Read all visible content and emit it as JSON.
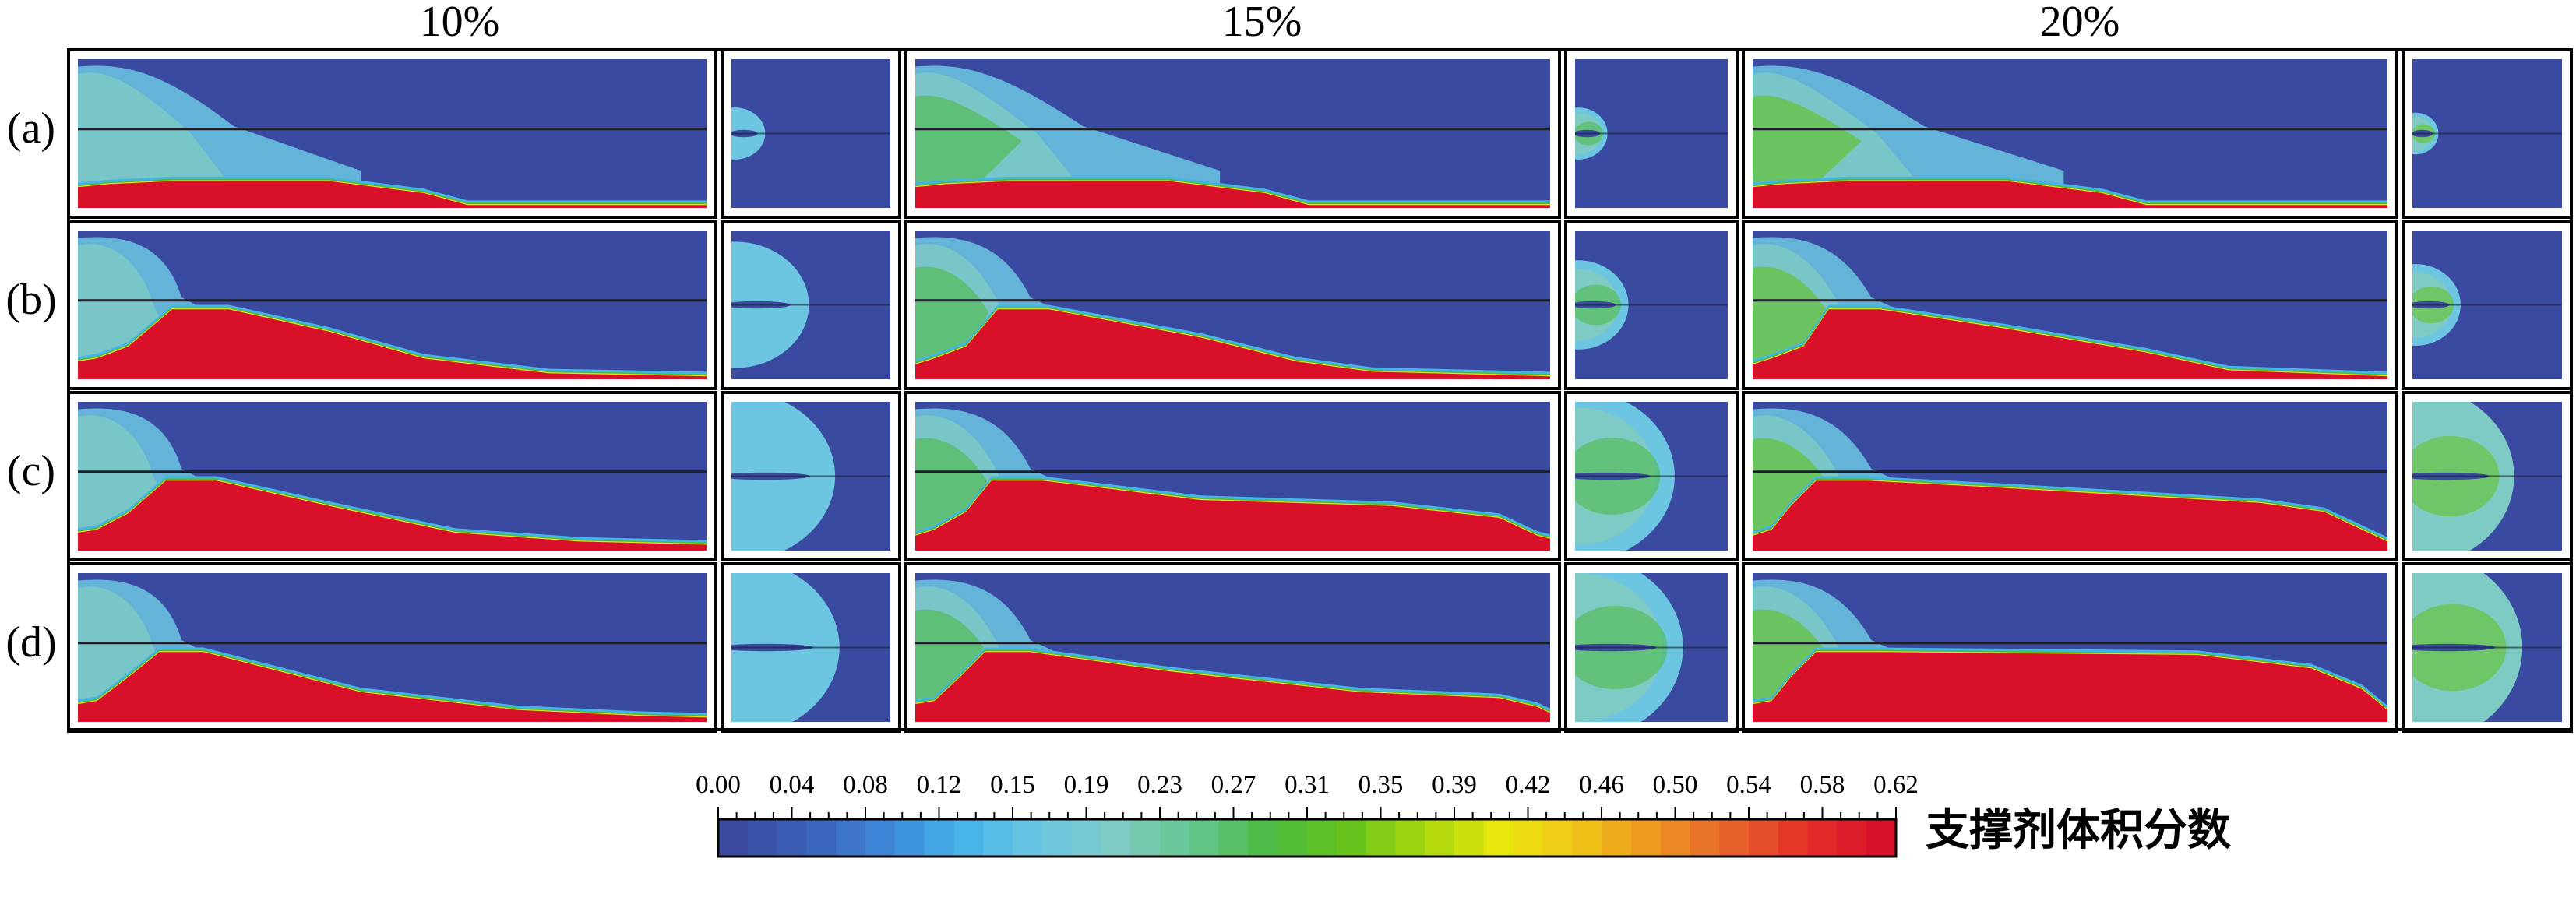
{
  "columns": [
    {
      "label": "10%"
    },
    {
      "label": "15%"
    },
    {
      "label": "20%"
    }
  ],
  "rows": [
    {
      "label": "(a)"
    },
    {
      "label": "(b)"
    },
    {
      "label": "(c)"
    },
    {
      "label": "(d)"
    }
  ],
  "colorbar": {
    "title": "支撑剂体积分数",
    "ticks": [
      "0.00",
      "0.04",
      "0.08",
      "0.12",
      "0.15",
      "0.19",
      "0.23",
      "0.27",
      "0.31",
      "0.35",
      "0.39",
      "0.42",
      "0.46",
      "0.50",
      "0.54",
      "0.58",
      "0.62"
    ],
    "min": 0.0,
    "max": 0.62,
    "colors": [
      "#3a4aa0",
      "#3a61b8",
      "#3d86d8",
      "#45b4ea",
      "#6cc6e2",
      "#7dcbc4",
      "#66c690",
      "#4cbb42",
      "#63c21e",
      "#a6d60e",
      "#e6e60a",
      "#f0c818",
      "#ee9620",
      "#e7642a",
      "#e23028",
      "#d8102a"
    ]
  }
}
